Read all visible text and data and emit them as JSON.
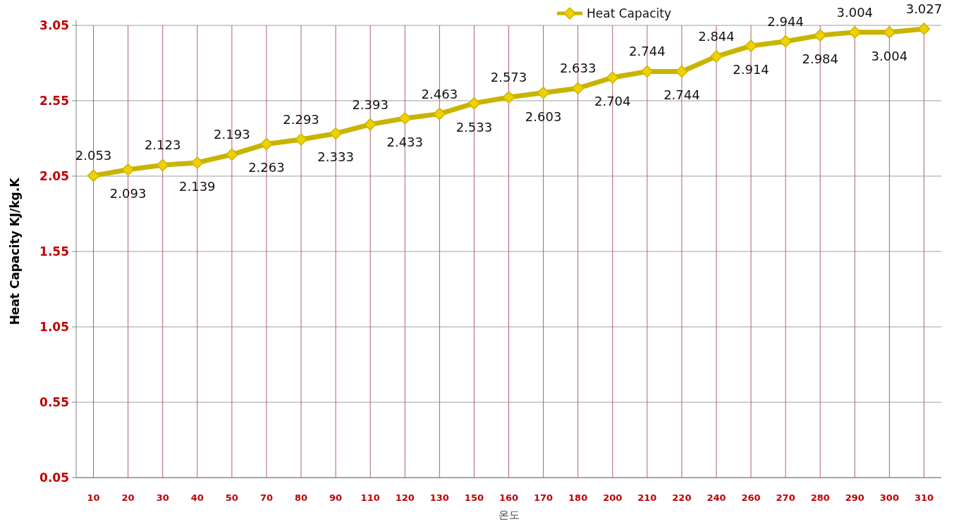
{
  "chart_data": {
    "type": "line",
    "xlabel": "온도",
    "ylabel": "Heat Capacity KJ/kg.K",
    "categories": [
      "10",
      "20",
      "30",
      "40",
      "50",
      "70",
      "80",
      "90",
      "110",
      "120",
      "130",
      "150",
      "160",
      "170",
      "180",
      "200",
      "210",
      "220",
      "240",
      "260",
      "270",
      "280",
      "290",
      "300",
      "310"
    ],
    "series": [
      {
        "name": "Heat Capacity",
        "color": "#c8b400",
        "values": [
          2.053,
          2.093,
          2.123,
          2.139,
          2.193,
          2.263,
          2.293,
          2.333,
          2.393,
          2.433,
          2.463,
          2.533,
          2.573,
          2.603,
          2.633,
          2.704,
          2.744,
          2.744,
          2.844,
          2.914,
          2.944,
          2.984,
          3.004,
          3.004,
          3.027
        ]
      }
    ],
    "ylim": [
      0.05,
      3.05
    ],
    "yticks": [
      0.05,
      0.55,
      1.05,
      1.55,
      2.05,
      2.55,
      3.05
    ],
    "grid": true,
    "legend": "top",
    "marker": "diamond",
    "line_style": "solid",
    "data_labels": true
  }
}
